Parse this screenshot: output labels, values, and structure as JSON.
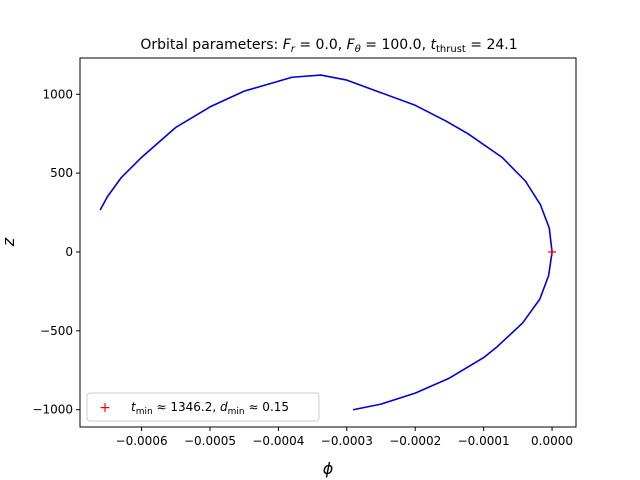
{
  "figure": {
    "title": {
      "prefix": "Orbital parameters: ",
      "fr_symbol": "F",
      "fr_sub": "r",
      "fr_value": " =  0.0, ",
      "ftheta_symbol": "F",
      "ftheta_sub": "θ",
      "ftheta_value": " =  100.0, ",
      "tthrust_symbol": "t",
      "tthrust_sub": "thrust",
      "tthrust_value": " =  24.1"
    },
    "xlabel": "ϕ",
    "ylabel": "z",
    "legend": {
      "marker": "+",
      "tmin_symbol": "t",
      "tmin_sub": "min",
      "tmin_value": " ≈  1346.2, ",
      "dmin_symbol": "d",
      "dmin_sub": "min",
      "dmin_value": " ≈  0.15",
      "location": "lower-left"
    }
  },
  "chart_data": {
    "type": "line",
    "xlim": [
      -0.00069,
      3.5e-05
    ],
    "ylim": [
      -1110,
      1230
    ],
    "x_ticks": [
      -0.0006,
      -0.0005,
      -0.0004,
      -0.0003,
      -0.0002,
      -0.0001,
      0.0
    ],
    "x_tick_labels": [
      "−0.0006",
      "−0.0005",
      "−0.0004",
      "−0.0003",
      "−0.0002",
      "−0.0001",
      "0.0000"
    ],
    "y_ticks": [
      -1000,
      -500,
      0,
      500,
      1000
    ],
    "y_tick_labels": [
      "−1000",
      "−500",
      "0",
      "500",
      "1000"
    ],
    "grid": false,
    "series": [
      {
        "color": "#0000dd",
        "kind": "line",
        "points": [
          [
            0.0,
            0
          ],
          [
            -4e-06,
            150
          ],
          [
            -1.7e-05,
            300
          ],
          [
            -3.9e-05,
            450
          ],
          [
            -7.3e-05,
            600
          ],
          [
            -0.000123,
            750
          ],
          [
            -0.000155,
            830
          ],
          [
            -0.0002,
            930
          ],
          [
            -0.00025,
            1010
          ],
          [
            -0.0003,
            1090
          ],
          [
            -0.000338,
            1122
          ],
          [
            -0.00038,
            1108
          ],
          [
            -0.00045,
            1020
          ],
          [
            -0.0005,
            920
          ],
          [
            -0.00055,
            790
          ],
          [
            -0.0006,
            600
          ],
          [
            -0.00063,
            470
          ],
          [
            -0.00065,
            350
          ],
          [
            -0.00066,
            270
          ]
        ]
      },
      {
        "color": "#0000dd",
        "kind": "line",
        "points": [
          [
            0.0,
            0
          ],
          [
            -5e-06,
            -150
          ],
          [
            -1.8e-05,
            -300
          ],
          [
            -4.3e-05,
            -450
          ],
          [
            -8e-05,
            -600
          ],
          [
            -0.0001,
            -670
          ],
          [
            -0.00015,
            -800
          ],
          [
            -0.0002,
            -895
          ],
          [
            -0.00025,
            -965
          ],
          [
            -0.00029,
            -1000
          ]
        ]
      },
      {
        "color": "#ff0000",
        "kind": "marker",
        "marker": "+",
        "points": [
          [
            0.0,
            0
          ]
        ]
      }
    ]
  }
}
